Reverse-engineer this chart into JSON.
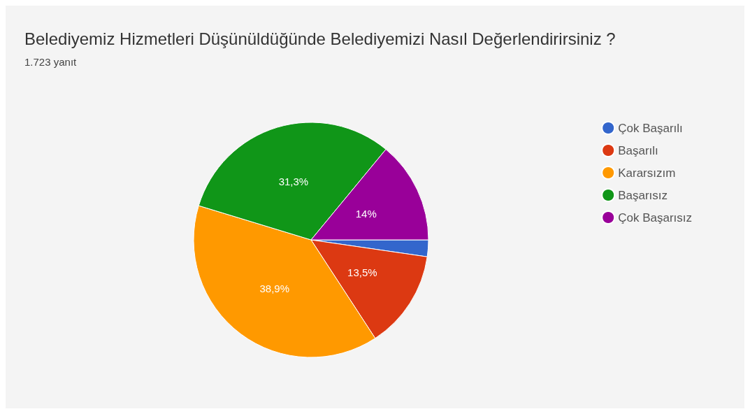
{
  "chart_data": {
    "type": "pie",
    "title": "Belediyemiz Hizmetleri Düşünüldüğünde Belediyemizi Nasıl Değerlendirirsiniz ?",
    "subtitle": "1.723 yanıt",
    "categories": [
      "Çok Başarılı",
      "Başarılı",
      "Kararsızım",
      "Başarısız",
      "Çok Başarısız"
    ],
    "values": [
      2.3,
      13.5,
      38.9,
      31.3,
      14
    ],
    "value_labels": [
      null,
      "13,5%",
      "38,9%",
      "31,3%",
      "14%"
    ],
    "colors": [
      "#3366cc",
      "#dc3912",
      "#ff9900",
      "#109618",
      "#990099"
    ],
    "legend": "right"
  }
}
